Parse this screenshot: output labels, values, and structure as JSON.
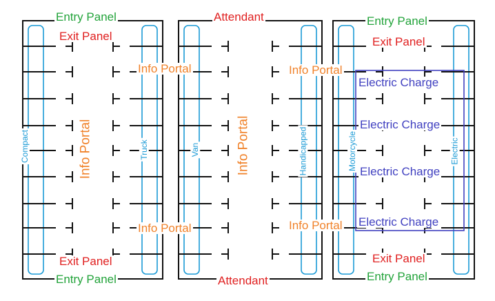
{
  "labels": {
    "entry_panel": "Entry Panel",
    "exit_panel": "Exit Panel",
    "attendant": "Attendant",
    "info_portal": "Info Portal",
    "electric_charge": "Electric Charge"
  },
  "lanes": {
    "compact": "Compact",
    "truck": "Truck",
    "van": "Van",
    "handicapped": "Handicapped",
    "motorcycle": "Motorcycle",
    "electric": "Electric"
  },
  "colors": {
    "wall": "#111111",
    "lane": "#1a9ad6",
    "entry": "#22a33a",
    "exit": "#e02020",
    "info": "#f0822a",
    "charge": "#4040c0"
  }
}
